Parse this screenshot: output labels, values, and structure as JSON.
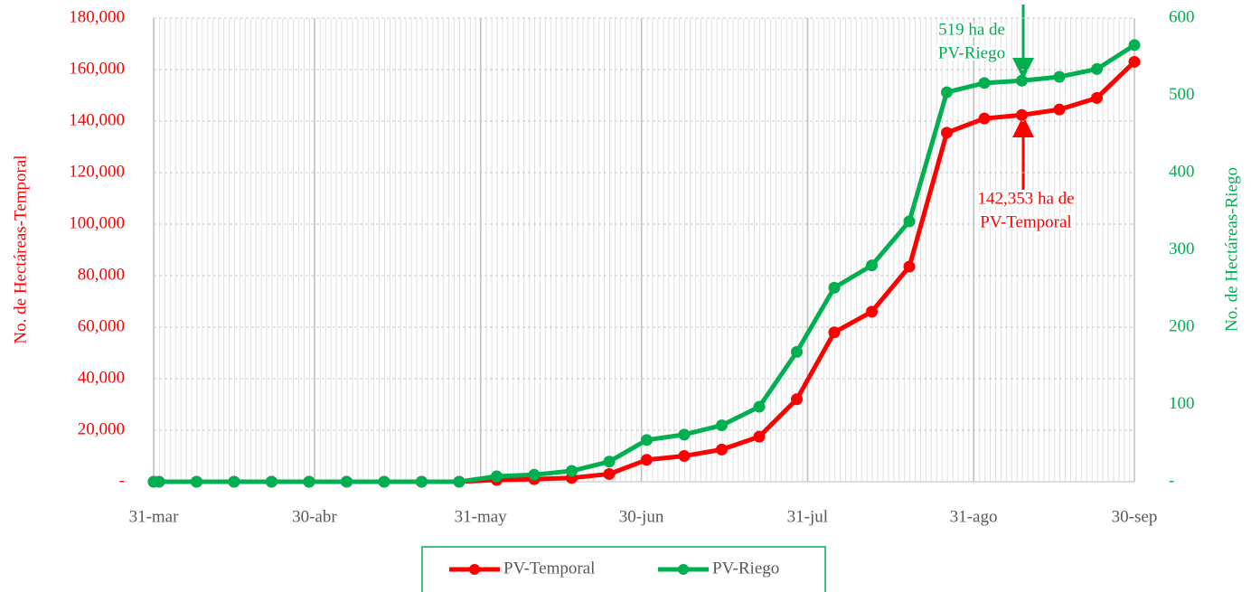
{
  "chart_data": {
    "type": "line",
    "y_label": "No. de Hectáreas-Temporal",
    "y2_label": "No. de Hectáreas-Riego",
    "x": [
      0,
      1,
      8,
      15,
      22,
      29,
      36,
      43,
      50,
      57,
      64,
      71,
      78,
      85,
      92,
      99,
      106,
      113,
      120,
      127,
      134,
      141,
      148,
      155,
      162,
      169,
      176,
      183
    ],
    "xlim": [
      0,
      183
    ],
    "xticks": [
      {
        "value": 0,
        "label": "31-mar"
      },
      {
        "value": 30,
        "label": "30-abr"
      },
      {
        "value": 61,
        "label": "31-may"
      },
      {
        "value": 91,
        "label": "30-jun"
      },
      {
        "value": 122,
        "label": "31-jul"
      },
      {
        "value": 153,
        "label": "31-ago"
      },
      {
        "value": 183,
        "label": "30-sep"
      }
    ],
    "ylim": [
      0,
      180000
    ],
    "yticks": [
      {
        "value": 0,
        "label": "-"
      },
      {
        "value": 20000,
        "label": "20,000"
      },
      {
        "value": 40000,
        "label": "40,000"
      },
      {
        "value": 60000,
        "label": "60,000"
      },
      {
        "value": 80000,
        "label": "80,000"
      },
      {
        "value": 100000,
        "label": "100,000"
      },
      {
        "value": 120000,
        "label": "120,000"
      },
      {
        "value": 140000,
        "label": "140,000"
      },
      {
        "value": 160000,
        "label": "160,000"
      },
      {
        "value": 180000,
        "label": "180,000"
      }
    ],
    "y2lim": [
      0,
      600
    ],
    "y2ticks": [
      {
        "value": 0,
        "label": "-"
      },
      100,
      200,
      300,
      400,
      500,
      600
    ],
    "grid": true,
    "legend": "bottom",
    "series": [
      {
        "name": "PV-Temporal",
        "color": "#ff0000",
        "values": [
          0,
          0,
          0,
          0,
          0,
          0,
          0,
          0,
          0,
          0,
          700,
          1000,
          1500,
          3000,
          8500,
          10000,
          12500,
          17500,
          32000,
          58000,
          66000,
          83500,
          135500,
          141000,
          142353,
          144500,
          149000,
          163000
        ]
      },
      {
        "name": "PV-Riego",
        "color": "#00b050",
        "axis": "y2",
        "values": [
          0,
          0,
          0,
          0,
          0,
          0,
          0,
          0,
          0,
          0,
          7,
          9,
          14,
          26,
          54,
          61,
          73,
          97,
          168,
          251,
          280,
          337,
          504,
          516,
          519,
          524,
          534,
          565
        ]
      }
    ],
    "annotations": [
      {
        "lines": [
          "519 ha de",
          "PV-Riego"
        ],
        "color": "#00b050"
      },
      {
        "lines": [
          "142,353 ha de",
          "PV-Temporal"
        ],
        "color": "#ff0000"
      }
    ]
  }
}
